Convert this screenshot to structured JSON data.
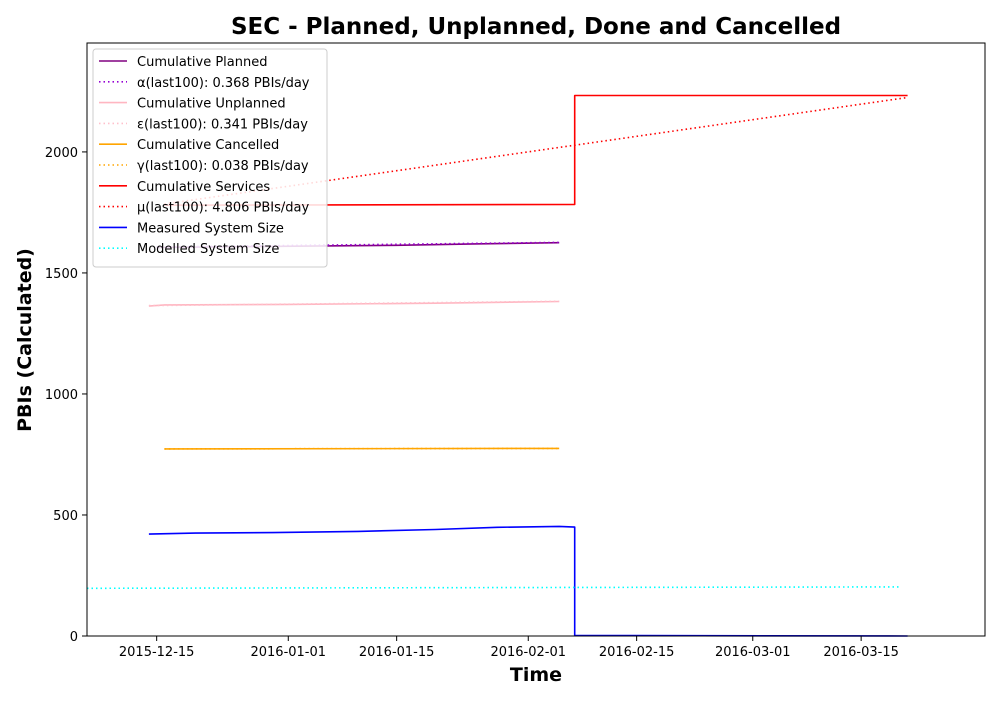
{
  "chart_data": {
    "type": "line",
    "title": "SEC - Planned, Unplanned, Done  and Cancelled",
    "xlabel": "Time",
    "ylabel": "PBIs (Calculated)",
    "xlim": [
      "2015-12-06",
      "2016-03-31"
    ],
    "ylim": [
      0,
      2450
    ],
    "xticks": [
      "2015-12-15",
      "2016-01-01",
      "2016-01-15",
      "2016-02-01",
      "2016-02-15",
      "2016-03-01",
      "2016-03-15"
    ],
    "yticks": [
      0,
      500,
      1000,
      1500,
      2000
    ],
    "grid": false,
    "legend_position": "top-left",
    "series": [
      {
        "name": "Cumulative Planned",
        "color": "#800080",
        "style": "solid",
        "x": [
          "2015-12-15",
          "2015-12-31",
          "2016-01-15",
          "2016-01-25",
          "2016-02-05"
        ],
        "y": [
          1605,
          1610,
          1614,
          1620,
          1625
        ]
      },
      {
        "name": "α(last100): 0.368 PBIs/day",
        "color": "#9400d3",
        "style": "dotted",
        "x": [
          "2015-12-15",
          "2016-02-05"
        ],
        "y": [
          1607,
          1626
        ]
      },
      {
        "name": "Cumulative Unplanned",
        "color": "#ffb6c1",
        "style": "solid",
        "x": [
          "2015-12-14",
          "2015-12-16",
          "2016-01-01",
          "2016-01-20",
          "2016-02-05"
        ],
        "y": [
          1363,
          1368,
          1370,
          1375,
          1382
        ]
      },
      {
        "name": "ε(last100): 0.341 PBIs/day",
        "color": "#ffc0cb",
        "style": "dotted",
        "x": [
          "2015-12-14",
          "2016-02-05"
        ],
        "y": [
          1365,
          1383
        ]
      },
      {
        "name": "Cumulative Cancelled",
        "color": "#ffa500",
        "style": "solid",
        "x": [
          "2015-12-16",
          "2016-02-05"
        ],
        "y": [
          773,
          775
        ]
      },
      {
        "name": "γ(last100): 0.038 PBIs/day",
        "color": "#ffa500",
        "style": "dotted",
        "x": [
          "2015-12-16",
          "2016-02-05"
        ],
        "y": [
          773,
          775
        ]
      },
      {
        "name": "Cumulative Services",
        "color": "#ff0000",
        "style": "solid",
        "x": [
          "2015-12-16",
          "2016-02-07",
          "2016-02-07",
          "2016-03-21"
        ],
        "y": [
          1780,
          1783,
          2233,
          2233
        ]
      },
      {
        "name": "μ(last100): 4.806 PBIs/day",
        "color": "#ff0000",
        "style": "dotted",
        "x": [
          "2015-12-16",
          "2016-03-21"
        ],
        "y": [
          1785,
          2225
        ]
      },
      {
        "name": "Measured System Size",
        "color": "#0000ff",
        "style": "solid",
        "x": [
          "2015-12-14",
          "2015-12-20",
          "2015-12-30",
          "2016-01-10",
          "2016-01-20",
          "2016-01-28",
          "2016-02-05",
          "2016-02-07",
          "2016-02-07",
          "2016-03-21"
        ],
        "y": [
          421,
          425,
          427,
          432,
          440,
          449,
          453,
          450,
          2,
          0
        ]
      },
      {
        "name": "Modelled System Size",
        "color": "#00ffff",
        "style": "dotted",
        "x": [
          "2015-12-06",
          "2016-03-20"
        ],
        "y": [
          197,
          203
        ]
      }
    ]
  }
}
